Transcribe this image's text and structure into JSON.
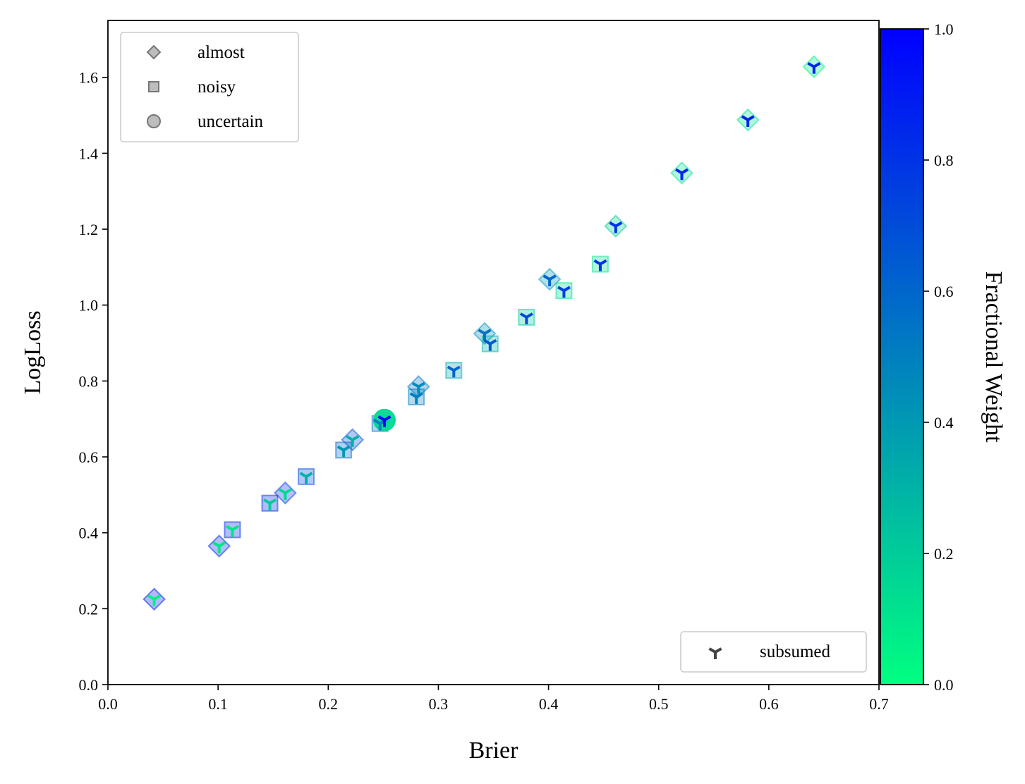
{
  "chart_data": {
    "type": "scatter",
    "xlabel": "Brier",
    "ylabel": "LogLoss",
    "xlim": [
      0.0,
      0.7
    ],
    "ylim": [
      0.0,
      1.75
    ],
    "xticks": [
      "0.0",
      "0.1",
      "0.2",
      "0.3",
      "0.4",
      "0.5",
      "0.6",
      "0.7"
    ],
    "xtick_values": [
      0.0,
      0.1,
      0.2,
      0.3,
      0.4,
      0.5,
      0.6,
      0.7
    ],
    "yticks": [
      "0.0",
      "0.2",
      "0.4",
      "0.6",
      "0.8",
      "1.0",
      "1.2",
      "1.4",
      "1.6"
    ],
    "ytick_values": [
      0.0,
      0.2,
      0.4,
      0.6,
      0.8,
      1.0,
      1.2,
      1.4,
      1.6
    ],
    "grid": false,
    "colorbar": {
      "label": "Fractional Weight",
      "range": [
        0.0,
        1.0
      ],
      "ticks": [
        "0.0",
        "0.2",
        "0.4",
        "0.6",
        "0.8",
        "1.0"
      ],
      "tick_values": [
        0.0,
        0.2,
        0.4,
        0.6,
        0.8,
        1.0
      ],
      "colormap": "winter",
      "color_low": "#00ff80",
      "color_high": "#0000ff"
    },
    "legend_markers": {
      "placement": "upper-left",
      "entries": [
        {
          "label": "almost",
          "marker": "diamond"
        },
        {
          "label": "noisy",
          "marker": "square"
        },
        {
          "label": "uncertain",
          "marker": "circle"
        }
      ]
    },
    "legend_subsumed": {
      "placement": "lower-right",
      "entries": [
        {
          "label": "subsumed",
          "marker": "tri-down"
        }
      ]
    },
    "series": [
      {
        "marker": "diamond",
        "points": [
          {
            "x": 0.042,
            "y": 0.225,
            "w": 0.9,
            "sub": 0.05
          },
          {
            "x": 0.101,
            "y": 0.365,
            "w": 0.85,
            "sub": 0.1
          },
          {
            "x": 0.161,
            "y": 0.505,
            "w": 0.8,
            "sub": 0.15
          },
          {
            "x": 0.222,
            "y": 0.645,
            "w": 0.7,
            "sub": 0.3
          },
          {
            "x": 0.282,
            "y": 0.785,
            "w": 0.55,
            "sub": 0.45
          },
          {
            "x": 0.342,
            "y": 0.925,
            "w": 0.45,
            "sub": 0.55
          },
          {
            "x": 0.401,
            "y": 1.068,
            "w": 0.4,
            "sub": 0.6
          },
          {
            "x": 0.461,
            "y": 1.208,
            "w": 0.2,
            "sub": 0.8
          },
          {
            "x": 0.521,
            "y": 1.348,
            "w": 0.1,
            "sub": 0.85
          },
          {
            "x": 0.581,
            "y": 1.488,
            "w": 0.1,
            "sub": 0.85
          },
          {
            "x": 0.641,
            "y": 1.628,
            "w": 0.05,
            "sub": 0.85
          }
        ]
      },
      {
        "marker": "square",
        "points": [
          {
            "x": 0.113,
            "y": 0.408,
            "w": 0.85,
            "sub": 0.1
          },
          {
            "x": 0.147,
            "y": 0.478,
            "w": 0.85,
            "sub": 0.2
          },
          {
            "x": 0.18,
            "y": 0.548,
            "w": 0.7,
            "sub": 0.3
          },
          {
            "x": 0.214,
            "y": 0.618,
            "w": 0.6,
            "sub": 0.4
          },
          {
            "x": 0.247,
            "y": 0.688,
            "w": 0.55,
            "sub": 0.5
          },
          {
            "x": 0.28,
            "y": 0.758,
            "w": 0.5,
            "sub": 0.5
          },
          {
            "x": 0.314,
            "y": 0.828,
            "w": 0.35,
            "sub": 0.6
          },
          {
            "x": 0.347,
            "y": 0.898,
            "w": 0.3,
            "sub": 0.65
          },
          {
            "x": 0.38,
            "y": 0.968,
            "w": 0.2,
            "sub": 0.7
          },
          {
            "x": 0.414,
            "y": 1.038,
            "w": 0.15,
            "sub": 0.75
          },
          {
            "x": 0.447,
            "y": 1.108,
            "w": 0.1,
            "sub": 0.8
          }
        ]
      },
      {
        "marker": "circle",
        "points": [
          {
            "x": 0.251,
            "y": 0.697,
            "w": 0.15,
            "sub": 1.0
          }
        ]
      }
    ]
  }
}
